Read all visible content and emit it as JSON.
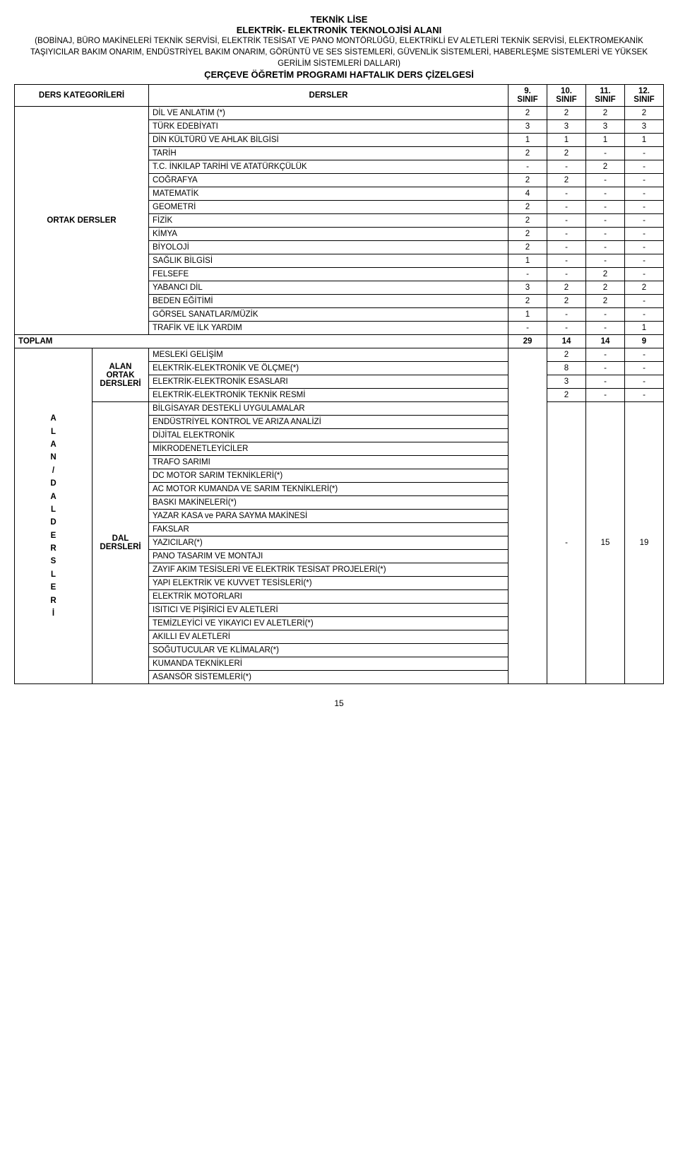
{
  "header": {
    "title1": "TEKNİK LİSE",
    "title2": "ELEKTRİK- ELEKTRONİK TEKNOLOJİSİ ALANI",
    "subtitle": "(BOBİNAJ, BÜRO MAKİNELERİ TEKNİK SERVİSİ, ELEKTRİK TESİSAT VE PANO MONTÖRLÜĞÜ, ELEKTRİKLİ EV ALETLERİ TEKNİK SERVİSİ, ELEKTROMEKANİK TAŞIYICILAR BAKIM ONARIM, ENDÜSTRİYEL BAKIM ONARIM, GÖRÜNTÜ VE SES SİSTEMLERİ, GÜVENLİK SİSTEMLERİ, HABERLEŞME SİSTEMLERİ VE YÜKSEK GERİLİM SİSTEMLERİ DALLARI)",
    "program": "ÇERÇEVE ÖĞRETİM PROGRAMI HAFTALIK DERS ÇİZELGESİ"
  },
  "columns": {
    "cat": "DERS KATEGORİLERİ",
    "courses": "DERSLER",
    "g9a": "9.",
    "g9b": "SINIF",
    "g10a": "10.",
    "g10b": "SINIF",
    "g11a": "11.",
    "g11b": "SINIF",
    "g12a": "12.",
    "g12b": "SINIF"
  },
  "ortak_label": "ORTAK DERSLER",
  "ortak": [
    {
      "name": "DİL VE ANLATIM (*)",
      "v": [
        "2",
        "2",
        "2",
        "2"
      ]
    },
    {
      "name": "TÜRK EDEBİYATI",
      "v": [
        "3",
        "3",
        "3",
        "3"
      ]
    },
    {
      "name": "DİN KÜLTÜRÜ VE AHLAK BİLGİSİ",
      "v": [
        "1",
        "1",
        "1",
        "1"
      ]
    },
    {
      "name": "TARİH",
      "v": [
        "2",
        "2",
        "-",
        "-"
      ]
    },
    {
      "name": "T.C. İNKILAP TARİHİ VE ATATÜRKÇÜLÜK",
      "v": [
        "-",
        "-",
        "2",
        "-"
      ]
    },
    {
      "name": "COĞRAFYA",
      "v": [
        "2",
        "2",
        "-",
        "-"
      ]
    },
    {
      "name": "MATEMATİK",
      "v": [
        "4",
        "-",
        "-",
        "-"
      ]
    },
    {
      "name": "GEOMETRİ",
      "v": [
        "2",
        "-",
        "-",
        "-"
      ]
    },
    {
      "name": "FİZİK",
      "v": [
        "2",
        "-",
        "-",
        "-"
      ]
    },
    {
      "name": "KİMYA",
      "v": [
        "2",
        "-",
        "-",
        "-"
      ]
    },
    {
      "name": "BİYOLOJİ",
      "v": [
        "2",
        "-",
        "-",
        "-"
      ]
    },
    {
      "name": "SAĞLIK BİLGİSİ",
      "v": [
        "1",
        "-",
        "-",
        "-"
      ]
    },
    {
      "name": "FELSEFE",
      "v": [
        "-",
        "-",
        "2",
        "-"
      ]
    },
    {
      "name": "YABANCI DİL",
      "v": [
        "3",
        "2",
        "2",
        "2"
      ]
    },
    {
      "name": "BEDEN EĞİTİMİ",
      "v": [
        "2",
        "2",
        "2",
        "-"
      ]
    },
    {
      "name": "GÖRSEL SANATLAR/MÜZİK",
      "v": [
        "1",
        "-",
        "-",
        "-"
      ]
    },
    {
      "name": "TRAFİK VE İLK YARDIM",
      "v": [
        "-",
        "-",
        "-",
        "1"
      ]
    }
  ],
  "toplam": {
    "label": "TOPLAM",
    "v": [
      "29",
      "14",
      "14",
      "9"
    ]
  },
  "side_label": "A L A N / D A L  D E R S L E R İ",
  "alan_ortak_label_l1": "ALAN",
  "alan_ortak_label_l2": "ORTAK",
  "alan_ortak_label_l3": "DERSLERİ",
  "alan_ortak": [
    {
      "name": "MESLEKİ GELİŞİM",
      "v": [
        "",
        "2",
        "-",
        "-"
      ]
    },
    {
      "name": "ELEKTRİK-ELEKTRONİK VE ÖLÇME(*)",
      "v": [
        "",
        "8",
        "-",
        "-"
      ]
    },
    {
      "name": "ELEKTRİK-ELEKTRONİK ESASLARI",
      "v": [
        "",
        "3",
        "-",
        "-"
      ]
    },
    {
      "name": "ELEKTRİK-ELEKTRONİK TEKNİK RESMİ",
      "v": [
        "",
        "2",
        "-",
        "-"
      ]
    }
  ],
  "dal_label_l1": "DAL",
  "dal_label_l2": "DERSLERİ",
  "dal_courses": [
    "BİLGİSAYAR DESTEKLİ UYGULAMALAR",
    "ENDÜSTRİYEL KONTROL VE ARIZA ANALİZİ",
    "DİJİTAL ELEKTRONİK",
    "MİKRODENETLEYİCİLER",
    "TRAFO SARIMI",
    "DC MOTOR SARIM TEKNİKLERİ(*)",
    "AC MOTOR KUMANDA VE SARIM TEKNİKLERİ(*)",
    "BASKI MAKİNELERİ(*)",
    "YAZAR KASA ve PARA SAYMA MAKİNESİ",
    "FAKSLAR",
    "YAZICILAR(*)",
    "PANO TASARIM VE MONTAJI",
    "ZAYIF AKIM TESİSLERİ VE ELEKTRİK TESİSAT PROJELERİ(*)",
    "YAPI ELEKTRİK VE KUVVET TESİSLERİ(*)",
    "ELEKTRİK MOTORLARI",
    "ISITICI VE PİŞİRİCİ EV ALETLERİ",
    "TEMİZLEYİCİ VE YIKAYICI  EV ALETLERİ(*)",
    "AKILLI EV ALETLERİ",
    "SOĞUTUCULAR VE KLİMALAR(*)",
    "KUMANDA TEKNİKLERİ",
    "ASANSÖR SİSTEMLERİ(*)"
  ],
  "dal_values": [
    "-",
    "-",
    "15",
    "19"
  ],
  "page_number": "15"
}
